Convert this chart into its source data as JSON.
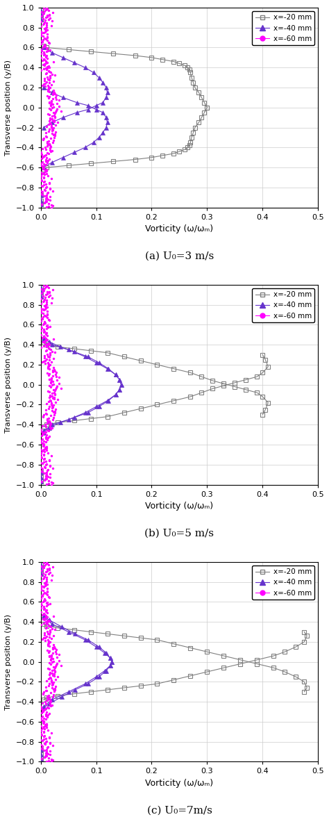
{
  "panels": [
    {
      "label": "(a) U₀=3 m/s",
      "xlim": [
        0,
        0.5
      ],
      "xticks": [
        0.0,
        0.1,
        0.2,
        0.3,
        0.4,
        0.5
      ],
      "x20_upper_x": [
        0.005,
        0.01,
        0.05,
        0.09,
        0.13,
        0.17,
        0.2,
        0.22,
        0.24,
        0.25,
        0.26,
        0.265,
        0.268,
        0.27,
        0.272,
        0.275,
        0.278,
        0.285,
        0.29,
        0.295,
        0.3
      ],
      "x20_upper_y": [
        0.62,
        0.6,
        0.58,
        0.56,
        0.54,
        0.52,
        0.5,
        0.48,
        0.46,
        0.44,
        0.42,
        0.4,
        0.38,
        0.35,
        0.3,
        0.25,
        0.2,
        0.15,
        0.1,
        0.05,
        0.0
      ],
      "x20_lower_x": [
        0.005,
        0.01,
        0.05,
        0.09,
        0.13,
        0.17,
        0.2,
        0.22,
        0.24,
        0.25,
        0.26,
        0.265,
        0.268,
        0.27,
        0.272,
        0.275,
        0.278,
        0.285,
        0.29,
        0.295,
        0.3
      ],
      "x20_lower_y": [
        -0.62,
        -0.6,
        -0.58,
        -0.56,
        -0.54,
        -0.52,
        -0.5,
        -0.48,
        -0.46,
        -0.44,
        -0.42,
        -0.4,
        -0.38,
        -0.35,
        -0.3,
        -0.25,
        -0.2,
        -0.15,
        -0.1,
        -0.05,
        0.0
      ],
      "x40_upper_x": [
        0.005,
        0.02,
        0.04,
        0.06,
        0.08,
        0.095,
        0.105,
        0.112,
        0.118,
        0.12,
        0.118,
        0.112,
        0.1,
        0.085,
        0.065,
        0.04,
        0.02,
        0.005
      ],
      "x40_upper_y": [
        0.6,
        0.55,
        0.5,
        0.45,
        0.4,
        0.35,
        0.3,
        0.25,
        0.2,
        0.15,
        0.1,
        0.05,
        0.02,
        -0.02,
        -0.05,
        -0.1,
        -0.15,
        -0.2
      ],
      "x40_lower_x": [
        0.005,
        0.02,
        0.04,
        0.06,
        0.08,
        0.095,
        0.105,
        0.112,
        0.118,
        0.12,
        0.118,
        0.112,
        0.1,
        0.085,
        0.065,
        0.04,
        0.02,
        0.005
      ],
      "x40_lower_y": [
        -0.6,
        -0.55,
        -0.5,
        -0.45,
        -0.4,
        -0.35,
        -0.3,
        -0.25,
        -0.2,
        -0.15,
        -0.1,
        -0.05,
        -0.02,
        0.02,
        0.05,
        0.1,
        0.15,
        0.2
      ]
    },
    {
      "label": "(b) U₀=5 m/s",
      "xlim": [
        0,
        0.5
      ],
      "xticks": [
        0.0,
        0.1,
        0.2,
        0.3,
        0.4,
        0.5
      ],
      "x20_upper_x": [
        0.005,
        0.01,
        0.03,
        0.06,
        0.09,
        0.12,
        0.15,
        0.18,
        0.21,
        0.24,
        0.27,
        0.29,
        0.31,
        0.33,
        0.35,
        0.37,
        0.39,
        0.4,
        0.41,
        0.405,
        0.4
      ],
      "x20_upper_y": [
        0.42,
        0.4,
        0.38,
        0.36,
        0.34,
        0.32,
        0.28,
        0.24,
        0.2,
        0.16,
        0.12,
        0.08,
        0.04,
        0.01,
        -0.02,
        -0.05,
        -0.08,
        -0.12,
        -0.18,
        -0.25,
        -0.3
      ],
      "x20_lower_x": [
        0.005,
        0.01,
        0.03,
        0.06,
        0.09,
        0.12,
        0.15,
        0.18,
        0.21,
        0.24,
        0.27,
        0.29,
        0.31,
        0.33,
        0.35,
        0.37,
        0.39,
        0.4,
        0.41,
        0.405,
        0.4
      ],
      "x20_lower_y": [
        -0.42,
        -0.4,
        -0.38,
        -0.36,
        -0.34,
        -0.32,
        -0.28,
        -0.24,
        -0.2,
        -0.16,
        -0.12,
        -0.08,
        -0.04,
        -0.01,
        0.02,
        0.05,
        0.08,
        0.12,
        0.18,
        0.25,
        0.3
      ],
      "x40_upper_x": [
        0.005,
        0.02,
        0.05,
        0.08,
        0.1,
        0.12,
        0.135,
        0.142,
        0.145,
        0.142,
        0.135,
        0.122,
        0.105,
        0.085,
        0.06,
        0.035,
        0.015,
        0.005
      ],
      "x40_upper_y": [
        0.48,
        0.4,
        0.35,
        0.28,
        0.22,
        0.16,
        0.1,
        0.05,
        0.0,
        -0.05,
        -0.1,
        -0.16,
        -0.22,
        -0.28,
        -0.33,
        -0.38,
        -0.43,
        -0.46
      ],
      "x40_lower_x": [
        0.005,
        0.02,
        0.05,
        0.08,
        0.1,
        0.12,
        0.135,
        0.142,
        0.145,
        0.142,
        0.135,
        0.122,
        0.105,
        0.085,
        0.06,
        0.035,
        0.015,
        0.005
      ],
      "x40_lower_y": [
        -0.48,
        -0.4,
        -0.35,
        -0.28,
        -0.22,
        -0.16,
        -0.1,
        -0.05,
        0.0,
        0.05,
        0.1,
        0.16,
        0.22,
        0.28,
        0.33,
        0.38,
        0.43,
        0.46
      ]
    },
    {
      "label": "(c) U₀=7m/s",
      "xlim": [
        0,
        0.5
      ],
      "xticks": [
        0.0,
        0.1,
        0.2,
        0.3,
        0.4,
        0.5
      ],
      "x20_upper_x": [
        0.005,
        0.01,
        0.03,
        0.06,
        0.09,
        0.12,
        0.15,
        0.18,
        0.21,
        0.24,
        0.27,
        0.3,
        0.33,
        0.36,
        0.39,
        0.42,
        0.44,
        0.46,
        0.475,
        0.48,
        0.475
      ],
      "x20_upper_y": [
        0.38,
        0.36,
        0.34,
        0.32,
        0.3,
        0.28,
        0.26,
        0.24,
        0.22,
        0.18,
        0.14,
        0.1,
        0.06,
        0.02,
        -0.02,
        -0.06,
        -0.1,
        -0.15,
        -0.2,
        -0.26,
        -0.3
      ],
      "x20_lower_x": [
        0.005,
        0.01,
        0.03,
        0.06,
        0.09,
        0.12,
        0.15,
        0.18,
        0.21,
        0.24,
        0.27,
        0.3,
        0.33,
        0.36,
        0.39,
        0.42,
        0.44,
        0.46,
        0.475,
        0.48,
        0.475
      ],
      "x20_lower_y": [
        -0.38,
        -0.36,
        -0.34,
        -0.32,
        -0.3,
        -0.28,
        -0.26,
        -0.24,
        -0.22,
        -0.18,
        -0.14,
        -0.1,
        -0.06,
        -0.02,
        0.02,
        0.06,
        0.1,
        0.15,
        0.2,
        0.26,
        0.3
      ],
      "x40_upper_x": [
        0.005,
        0.02,
        0.05,
        0.08,
        0.1,
        0.115,
        0.125,
        0.128,
        0.125,
        0.118,
        0.105,
        0.085,
        0.062,
        0.038,
        0.015,
        0.005
      ],
      "x40_upper_y": [
        0.45,
        0.38,
        0.3,
        0.22,
        0.15,
        0.09,
        0.04,
        0.0,
        -0.04,
        -0.09,
        -0.15,
        -0.22,
        -0.28,
        -0.35,
        -0.42,
        -0.46
      ],
      "x40_lower_x": [
        0.005,
        0.02,
        0.05,
        0.08,
        0.1,
        0.115,
        0.125,
        0.128,
        0.125,
        0.118,
        0.105,
        0.085,
        0.062,
        0.038,
        0.015,
        0.005
      ],
      "x40_lower_y": [
        -0.45,
        -0.38,
        -0.3,
        -0.22,
        -0.15,
        -0.09,
        -0.04,
        0.0,
        0.04,
        0.09,
        0.15,
        0.22,
        0.28,
        0.35,
        0.42,
        0.46
      ]
    }
  ],
  "ylabel": "Transverse position (y/B)",
  "xlabel": "Vorticity (ω/ωₘ)",
  "ylim": [
    -1.0,
    1.0
  ],
  "yticks": [
    -1.0,
    -0.8,
    -0.6,
    -0.4,
    -0.2,
    0.0,
    0.2,
    0.4,
    0.6,
    0.8,
    1.0
  ],
  "legend_labels": [
    "x=-20 mm",
    "x=-40 mm",
    "x=-60 mm"
  ],
  "legend_colors": [
    "#808080",
    "#6633CC",
    "#FF00FF"
  ],
  "legend_markers": [
    "s",
    "^",
    "o"
  ],
  "bg_color": "#ffffff",
  "grid_color": "#cccccc"
}
